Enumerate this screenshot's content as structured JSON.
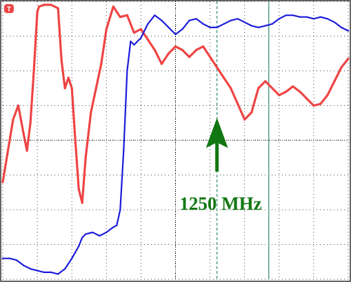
{
  "colors": {
    "background": "#ffffff",
    "grid": "#000000",
    "red_trace": "#ee4444",
    "blue_trace": "#1a1adb",
    "marker": "#2e8b73",
    "arrow": "#117711",
    "trigger_badge": "#ee4444"
  },
  "trigger_marker": {
    "icon": "trigger-icon",
    "glyph": "T"
  },
  "annotation": {
    "label": "1250 MHz"
  },
  "chart_data": {
    "type": "line",
    "title": "",
    "xlabel": "",
    "ylabel": "",
    "xlim": [
      0,
      10
    ],
    "ylim": [
      0,
      8
    ],
    "grid": true,
    "grid_style": "dotted",
    "x_divisions": 10,
    "y_divisions": 8,
    "series": [
      {
        "color": "red",
        "x": [
          0.0,
          0.15,
          0.3,
          0.45,
          0.6,
          0.7,
          0.8,
          0.9,
          1.0,
          1.05,
          1.2,
          1.4,
          1.6,
          1.7,
          1.8,
          1.9,
          2.0,
          2.1,
          2.2,
          2.3,
          2.4,
          2.55,
          2.7,
          2.85,
          3.0,
          3.2,
          3.4,
          3.6,
          3.8,
          4.0,
          4.2,
          4.4,
          4.5,
          4.6,
          4.8,
          5.0,
          5.2,
          5.4,
          5.6,
          5.8,
          6.0,
          6.2,
          6.4,
          6.6,
          6.8,
          7.0,
          7.2,
          7.4,
          7.6,
          7.8,
          8.0,
          8.2,
          8.4,
          8.6,
          8.8,
          9.0,
          9.2,
          9.4,
          9.6,
          9.8,
          10.0
        ],
        "y": [
          2.8,
          3.7,
          4.6,
          5.0,
          4.2,
          3.7,
          4.5,
          6.0,
          7.7,
          7.85,
          7.9,
          7.9,
          7.8,
          6.3,
          5.5,
          5.8,
          5.5,
          4.0,
          2.6,
          2.2,
          3.5,
          4.8,
          5.5,
          6.2,
          7.2,
          7.85,
          7.55,
          7.6,
          7.1,
          7.2,
          6.9,
          6.6,
          6.4,
          6.2,
          6.5,
          6.7,
          6.6,
          6.4,
          6.6,
          6.7,
          6.4,
          6.1,
          5.8,
          5.5,
          5.05,
          4.6,
          4.8,
          5.5,
          5.7,
          5.5,
          5.3,
          5.4,
          5.55,
          5.4,
          5.2,
          5.0,
          5.05,
          5.3,
          5.7,
          6.1,
          6.35
        ]
      },
      {
        "color": "blue",
        "x": [
          0.0,
          0.2,
          0.4,
          0.6,
          0.8,
          1.0,
          1.2,
          1.4,
          1.6,
          1.8,
          2.0,
          2.2,
          2.3,
          2.4,
          2.6,
          2.8,
          3.0,
          3.2,
          3.3,
          3.4,
          3.5,
          3.6,
          3.7,
          3.8,
          4.0,
          4.2,
          4.4,
          4.6,
          4.8,
          5.0,
          5.2,
          5.4,
          5.6,
          5.8,
          6.0,
          6.2,
          6.4,
          6.6,
          6.8,
          7.0,
          7.2,
          7.4,
          7.6,
          7.8,
          8.0,
          8.2,
          8.4,
          8.6,
          8.8,
          9.0,
          9.2,
          9.4,
          9.6,
          9.8,
          10.0
        ],
        "y": [
          0.6,
          0.6,
          0.55,
          0.4,
          0.3,
          0.25,
          0.2,
          0.2,
          0.15,
          0.3,
          0.6,
          0.95,
          1.2,
          1.3,
          1.35,
          1.25,
          1.35,
          1.5,
          1.55,
          2.0,
          3.7,
          6.0,
          6.85,
          6.75,
          6.95,
          7.35,
          7.6,
          7.45,
          7.25,
          7.05,
          7.2,
          7.45,
          7.5,
          7.35,
          7.25,
          7.25,
          7.35,
          7.45,
          7.5,
          7.4,
          7.3,
          7.25,
          7.3,
          7.35,
          7.5,
          7.6,
          7.6,
          7.55,
          7.55,
          7.5,
          7.55,
          7.5,
          7.4,
          7.25,
          7.15
        ]
      }
    ],
    "markers": [
      {
        "x": 6.2,
        "style": "dashed"
      },
      {
        "x": 7.7,
        "style": "solid"
      }
    ],
    "annotation_arrow": {
      "x": 6.2,
      "tip_y": 4.65,
      "tail_y": 3.1
    }
  }
}
